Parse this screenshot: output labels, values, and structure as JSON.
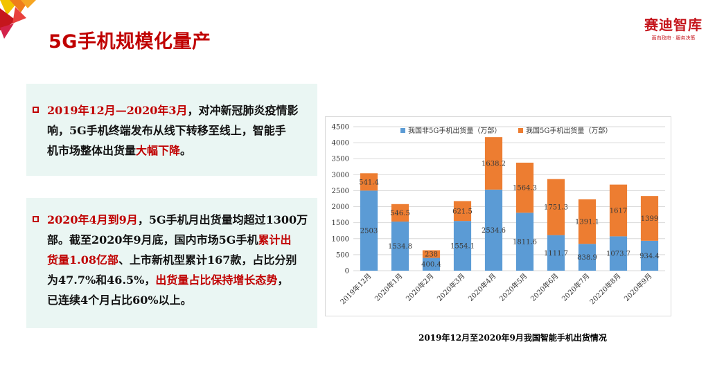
{
  "header": {
    "title": "5G手机规模化量产",
    "logo_name": "赛迪智库",
    "logo_slogan": "面向政府 · 服务决策"
  },
  "boxes": [
    {
      "lines": [
        [
          {
            "t": "2019年12月—2020年3月",
            "red": true
          },
          {
            "t": "，对冲新冠肺炎疫情影",
            "red": false
          }
        ],
        [
          {
            "t": "响，5G手机终端发布从线下转移至线上，智能手",
            "red": false
          }
        ],
        [
          {
            "t": "机市场整体出货量",
            "red": false
          },
          {
            "t": "大幅下降",
            "red": true
          },
          {
            "t": "。",
            "red": false
          }
        ]
      ]
    },
    {
      "lines": [
        [
          {
            "t": "2020年4月到9月",
            "red": true
          },
          {
            "t": "，5G手机月出货量均超过1300万",
            "red": false
          }
        ],
        [
          {
            "t": "部。截至2020年9月底，国内市场5G手机",
            "red": false
          },
          {
            "t": "累计出",
            "red": true
          }
        ],
        [
          {
            "t": "货量1.08亿部",
            "red": true
          },
          {
            "t": "、上市新机型累计167款，占比分别",
            "red": false
          }
        ],
        [
          {
            "t": "为47.7%和46.5%，",
            "red": false
          },
          {
            "t": "出货量占比保持增长态势",
            "red": true
          },
          {
            "t": "，",
            "red": false
          }
        ],
        [
          {
            "t": "已连续4个月占比60%以上。",
            "red": false
          }
        ]
      ]
    }
  ],
  "caption": "2019年12月至2020年9月我国智能手机出货情况",
  "chart_data": {
    "type": "bar",
    "stacked": true,
    "categories": [
      "2019年12月",
      "2020年1月",
      "2020年2月",
      "2020年3月",
      "2020年4月",
      "2020年5月",
      "2020年6月",
      "2020年7月",
      "20220年8月",
      "2020年9月"
    ],
    "series": [
      {
        "name": "我国非5G手机出货量（万部）",
        "color": "#5b9bd5",
        "values": [
          2503,
          1534.8,
          400.4,
          1554.1,
          2534.6,
          1811.6,
          1111.7,
          838.9,
          1073.7,
          934.4
        ]
      },
      {
        "name": "我国5G手机出货量（万部）",
        "color": "#ed7d31",
        "values": [
          541.4,
          546.5,
          238,
          621.5,
          1638.2,
          1564.3,
          1751.3,
          1391.1,
          1617,
          1399
        ]
      }
    ],
    "ylim": [
      0,
      4500
    ],
    "yticks": [
      0,
      500,
      1000,
      1500,
      2000,
      2500,
      3000,
      3500,
      4000,
      4500
    ],
    "grid": true,
    "legend": "top"
  }
}
